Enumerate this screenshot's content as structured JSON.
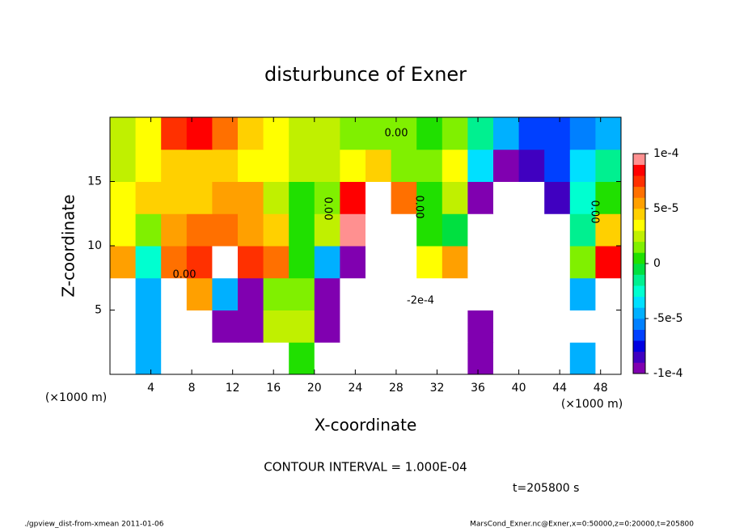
{
  "chart_data": {
    "type": "heatmap",
    "title": "disturbunce of Exner",
    "x_label": "X-coordinate",
    "y_label": "Z-coordinate",
    "x_unit_label": "(×1000 m)",
    "y_unit_label": "(×1000 m)",
    "contour_note": "CONTOUR INTERVAL = 1.000E-04",
    "time_label": "t=205800 s",
    "footer_left": "./gpview_dist-from-xmean  2011-01-06",
    "footer_right": "MarsCond_Exner.nc@Exner,x=0:50000,z=0:20000,t=205800",
    "annotations": [
      "0.00",
      "0.00",
      "0.00",
      "0.00",
      "0.00",
      "-2e-4"
    ],
    "xlim": [
      0,
      50
    ],
    "ylim": [
      0,
      20
    ],
    "xticks": [
      4,
      8,
      12,
      16,
      20,
      24,
      28,
      32,
      36,
      40,
      44,
      48
    ],
    "yticks": [
      5,
      10,
      15
    ],
    "x": [
      1.25,
      3.75,
      6.25,
      8.75,
      11.25,
      13.75,
      16.25,
      18.75,
      21.25,
      23.75,
      26.25,
      28.75,
      31.25,
      33.75,
      36.25,
      38.75,
      41.25,
      43.75,
      46.25,
      48.75
    ],
    "y": [
      1.25,
      3.75,
      6.25,
      8.75,
      11.25,
      13.75,
      16.25,
      18.75
    ],
    "z": [
      [
        0.0003,
        -5e-05,
        0.0003,
        -0.0003,
        -0.0003,
        -0.0003,
        0.0003,
        0,
        -0.0003,
        -0.0003,
        0.0003,
        0.0003,
        0.0003,
        0.0003,
        -9e-05,
        -0.0003,
        -0.0003,
        -0.0003,
        -5e-05,
        0.0003
      ],
      [
        0.0003,
        -5e-05,
        0.0003,
        -0.0003,
        -0.0001,
        -0.0001,
        2e-05,
        2e-05,
        -9e-05,
        0.0003,
        0.0003,
        0.0003,
        0.0003,
        0.0003,
        -9e-05,
        -0.0003,
        -0.0003,
        -0.0003,
        0.0003,
        0.0003
      ],
      [
        0.0003,
        -5e-05,
        0.0003,
        5e-05,
        -5e-05,
        -9e-05,
        1e-05,
        1e-05,
        -9e-05,
        0.0003,
        0.0003,
        0.0003,
        0.0003,
        0.0003,
        -0.0003,
        -0.0003,
        -0.0003,
        -0.0003,
        -5e-05,
        0.0003
      ],
      [
        5e-05,
        -3e-05,
        6e-05,
        7e-05,
        0.0003,
        7e-05,
        6e-05,
        0,
        -5e-05,
        -9e-05,
        0.0003,
        0.0003,
        3e-05,
        5e-05,
        -0.0003,
        -0.0003,
        -0.0003,
        -0.0003,
        1e-05,
        8e-05
      ],
      [
        3e-05,
        1e-05,
        5e-05,
        6e-05,
        6e-05,
        5e-05,
        4e-05,
        0,
        2e-05,
        9e-05,
        0.0003,
        0.0003,
        0,
        -1e-05,
        -0.0003,
        -0.0003,
        -0.0003,
        -0.0003,
        -2e-05,
        4e-05
      ],
      [
        3e-05,
        4e-05,
        4e-05,
        4e-05,
        5e-05,
        5e-05,
        2e-05,
        0,
        1e-05,
        8e-05,
        0.0003,
        6e-05,
        0,
        2e-05,
        -9e-05,
        -0.0003,
        -0.0003,
        -8e-05,
        -3e-05,
        0
      ],
      [
        2e-05,
        3e-05,
        4e-05,
        4e-05,
        4e-05,
        3e-05,
        3e-05,
        2e-05,
        2e-05,
        3e-05,
        4e-05,
        1e-05,
        1e-05,
        3e-05,
        -4e-05,
        -9e-05,
        -8e-05,
        -7e-05,
        -4e-05,
        -2e-05
      ],
      [
        2e-05,
        3e-05,
        7e-05,
        8e-05,
        6e-05,
        4e-05,
        3e-05,
        2e-05,
        2e-05,
        1e-05,
        1e-05,
        1e-05,
        0,
        1e-05,
        -2e-05,
        -5e-05,
        -7e-05,
        -7e-05,
        -6e-05,
        -5e-05
      ]
    ],
    "clim": [
      -0.0001,
      0.0001
    ],
    "colormap": [
      "#8000b0",
      "#4000c0",
      "#0000e0",
      "#0040ff",
      "#0080ff",
      "#00b0ff",
      "#00e0ff",
      "#00ffd0",
      "#00f090",
      "#00e040",
      "#20e000",
      "#80f000",
      "#c0f000",
      "#ffff00",
      "#ffd000",
      "#ffa000",
      "#ff7000",
      "#ff3000",
      "#ff0000",
      "#ff9090"
    ],
    "out_of_range_color": "#ffffff",
    "cticks": [
      {
        "value": 0.0001,
        "label": "1e-4"
      },
      {
        "value": 5e-05,
        "label": "5e-5"
      },
      0,
      {
        "value": -5e-05,
        "label": "-5e-5"
      },
      {
        "value": -0.0001,
        "label": "-1e-4"
      }
    ]
  }
}
